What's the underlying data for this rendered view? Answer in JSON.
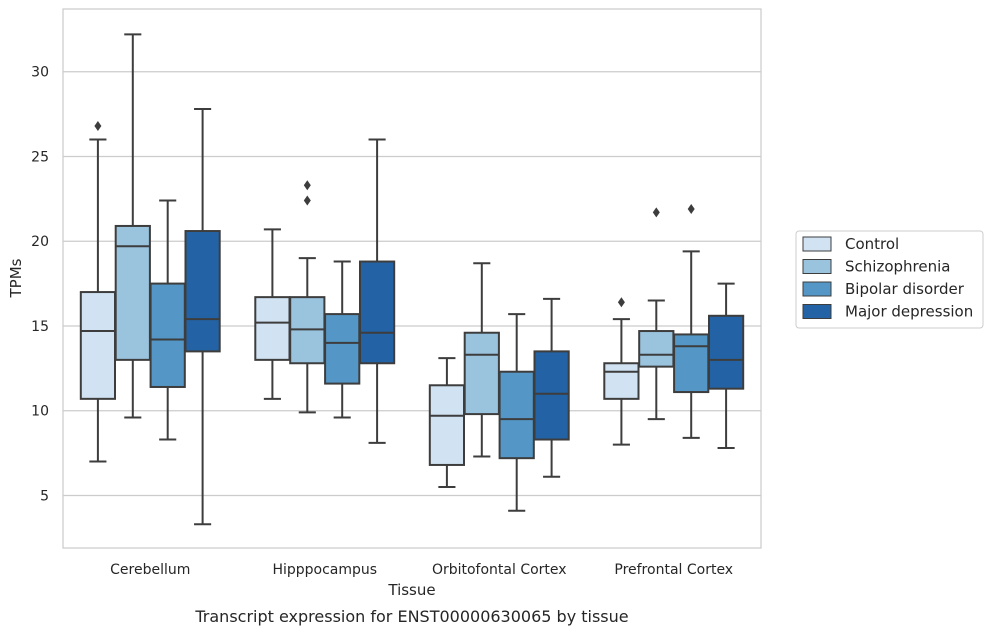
{
  "caption": "Transcript expression for ENST00000630065 by tissue",
  "chart_data": {
    "type": "box",
    "title": "",
    "xlabel": "Tissue",
    "ylabel": "TPMs",
    "ylim": [
      1.9,
      33.7
    ],
    "yticks": [
      5,
      10,
      15,
      20,
      25,
      30
    ],
    "grid": "horizontal",
    "legend_position": "right",
    "categories": [
      "Cerebellum",
      "Hipppocampus",
      "Orbitofontal Cortex",
      "Prefrontal Cortex"
    ],
    "series": [
      {
        "name": "Control",
        "color": "#d1e2f2",
        "boxes": [
          {
            "whislo": 7.0,
            "q1": 10.7,
            "med": 14.7,
            "q3": 17.0,
            "whishi": 26.0,
            "fliers": [
              26.8
            ]
          },
          {
            "whislo": 10.7,
            "q1": 13.0,
            "med": 15.2,
            "q3": 16.7,
            "whishi": 20.7,
            "fliers": []
          },
          {
            "whislo": 5.5,
            "q1": 6.8,
            "med": 9.7,
            "q3": 11.5,
            "whishi": 13.1,
            "fliers": []
          },
          {
            "whislo": 8.0,
            "q1": 10.7,
            "med": 12.3,
            "q3": 12.8,
            "whishi": 15.4,
            "fliers": [
              16.4
            ]
          }
        ]
      },
      {
        "name": "Schizophrenia",
        "color": "#9ac3de",
        "boxes": [
          {
            "whislo": 9.6,
            "q1": 13.0,
            "med": 19.7,
            "q3": 20.9,
            "whishi": 32.2,
            "fliers": []
          },
          {
            "whislo": 9.9,
            "q1": 12.8,
            "med": 14.8,
            "q3": 16.7,
            "whishi": 19.0,
            "fliers": [
              22.4,
              23.3
            ]
          },
          {
            "whislo": 7.3,
            "q1": 9.8,
            "med": 13.3,
            "q3": 14.6,
            "whishi": 18.7,
            "fliers": []
          },
          {
            "whislo": 9.5,
            "q1": 12.6,
            "med": 13.3,
            "q3": 14.7,
            "whishi": 16.5,
            "fliers": [
              21.7
            ]
          }
        ]
      },
      {
        "name": "Bipolar disorder",
        "color": "#5497c6",
        "boxes": [
          {
            "whislo": 8.3,
            "q1": 11.4,
            "med": 14.2,
            "q3": 17.5,
            "whishi": 22.4,
            "fliers": []
          },
          {
            "whislo": 9.6,
            "q1": 11.6,
            "med": 14.0,
            "q3": 15.7,
            "whishi": 18.8,
            "fliers": []
          },
          {
            "whislo": 4.1,
            "q1": 7.2,
            "med": 9.5,
            "q3": 12.3,
            "whishi": 15.7,
            "fliers": []
          },
          {
            "whislo": 8.4,
            "q1": 11.1,
            "med": 13.8,
            "q3": 14.5,
            "whishi": 19.4,
            "fliers": [
              21.9
            ]
          }
        ]
      },
      {
        "name": "Major depression",
        "color": "#2363a5",
        "boxes": [
          {
            "whislo": 3.3,
            "q1": 13.5,
            "med": 15.4,
            "q3": 20.6,
            "whishi": 27.8,
            "fliers": []
          },
          {
            "whislo": 8.1,
            "q1": 12.8,
            "med": 14.6,
            "q3": 18.8,
            "whishi": 26.0,
            "fliers": []
          },
          {
            "whislo": 6.1,
            "q1": 8.3,
            "med": 11.0,
            "q3": 13.5,
            "whishi": 16.6,
            "fliers": []
          },
          {
            "whislo": 7.8,
            "q1": 11.3,
            "med": 13.0,
            "q3": 15.6,
            "whishi": 17.5,
            "fliers": []
          }
        ]
      }
    ]
  }
}
